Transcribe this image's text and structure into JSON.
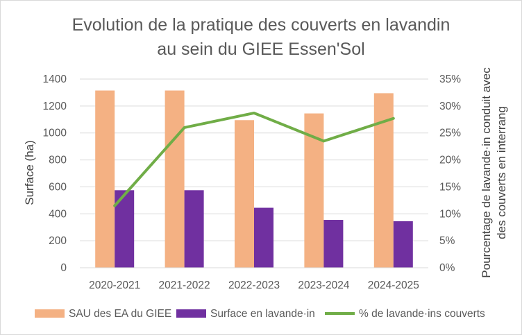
{
  "chart_data": {
    "type": "bar",
    "title_lines": [
      "Evolution de la pratique des couverts en lavandin",
      "au sein du GIEE Essen'Sol"
    ],
    "categories": [
      "2020-2021",
      "2021-2022",
      "2022-2023",
      "2023-2024",
      "2024-2025"
    ],
    "series": [
      {
        "name": "SAU des EA du GIEE",
        "type": "bar",
        "axis": "left",
        "color": "#F4B183",
        "values": [
          1315,
          1315,
          1095,
          1145,
          1295
        ]
      },
      {
        "name": "Surface en lavande·in",
        "type": "bar",
        "axis": "left",
        "color": "#7030A0",
        "values": [
          575,
          575,
          445,
          355,
          345
        ]
      },
      {
        "name": "% de lavande·ins couverts",
        "type": "line",
        "axis": "right",
        "color": "#70AD47",
        "values": [
          11.5,
          26.0,
          28.7,
          23.5,
          27.7
        ]
      }
    ],
    "ylabel": "Surface (ha)",
    "ylabel_right_lines": [
      "Pourcentage de lavande·in  conduit avec",
      "des couverts en interrang"
    ],
    "ylim": [
      0,
      1400
    ],
    "yticks": [
      0,
      200,
      400,
      600,
      800,
      1000,
      1200,
      1400
    ],
    "ylim_right": [
      0,
      35
    ],
    "yticks_right": [
      "0%",
      "5%",
      "10%",
      "15%",
      "20%",
      "25%",
      "30%",
      "35%"
    ],
    "grid": true,
    "legend_position": "bottom"
  }
}
